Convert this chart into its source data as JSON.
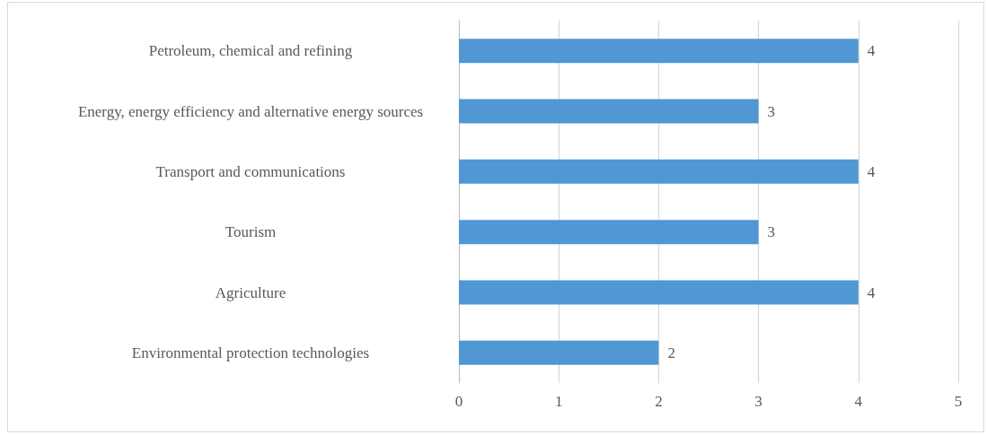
{
  "chart_data": {
    "type": "bar",
    "orientation": "horizontal",
    "categories": [
      "Petroleum, chemical and refining",
      "Energy, energy efficiency and alternative energy sources",
      "Transport and communications",
      "Tourism",
      "Agriculture",
      "Environmental protection technologies"
    ],
    "values": [
      4,
      3,
      4,
      3,
      4,
      2
    ],
    "color": "#5097d3",
    "xlim": [
      0,
      5
    ],
    "xticks": [
      0,
      1,
      2,
      3,
      4,
      5
    ],
    "grid": "x",
    "data_labels": true
  }
}
